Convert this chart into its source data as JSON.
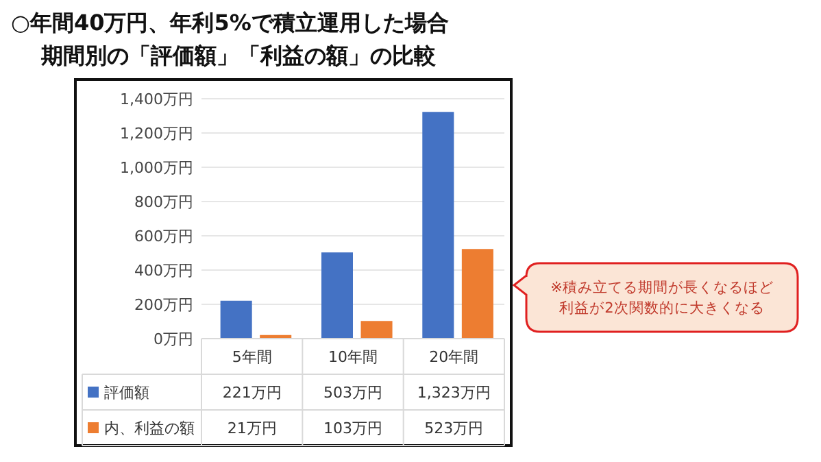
{
  "chart_data": {
    "type": "bar",
    "title": "○年間40万円、年利5%で積立運用した場合",
    "subtitle": "期間別の「評価額」「利益の額」の比較",
    "categories": [
      "5年間",
      "10年間",
      "20年間"
    ],
    "series": [
      {
        "name": "評価額",
        "color": "#4472c4",
        "values": [
          221,
          503,
          1323
        ],
        "value_labels": [
          "221万円",
          "503万円",
          "1,323万円"
        ]
      },
      {
        "name": "内、利益の額",
        "color": "#ed7d31",
        "values": [
          21,
          103,
          523
        ],
        "value_labels": [
          "21万円",
          "103万円",
          "523万円"
        ]
      }
    ],
    "ylim": [
      0,
      1400
    ],
    "yticks": [
      {
        "value": 0,
        "label": "0万円"
      },
      {
        "value": 200,
        "label": "200万円"
      },
      {
        "value": 400,
        "label": "400万円"
      },
      {
        "value": 600,
        "label": "600万円"
      },
      {
        "value": 800,
        "label": "800万円"
      },
      {
        "value": 1000,
        "label": "1,000万円"
      },
      {
        "value": 1200,
        "label": "1,200万円"
      },
      {
        "value": 1400,
        "label": "1,400万円"
      }
    ],
    "grid": "y",
    "legend": "bottom",
    "annotations": [
      "※積み立てる期間が長くなるほど",
      "利益が2次関数的に大きくなる"
    ]
  }
}
